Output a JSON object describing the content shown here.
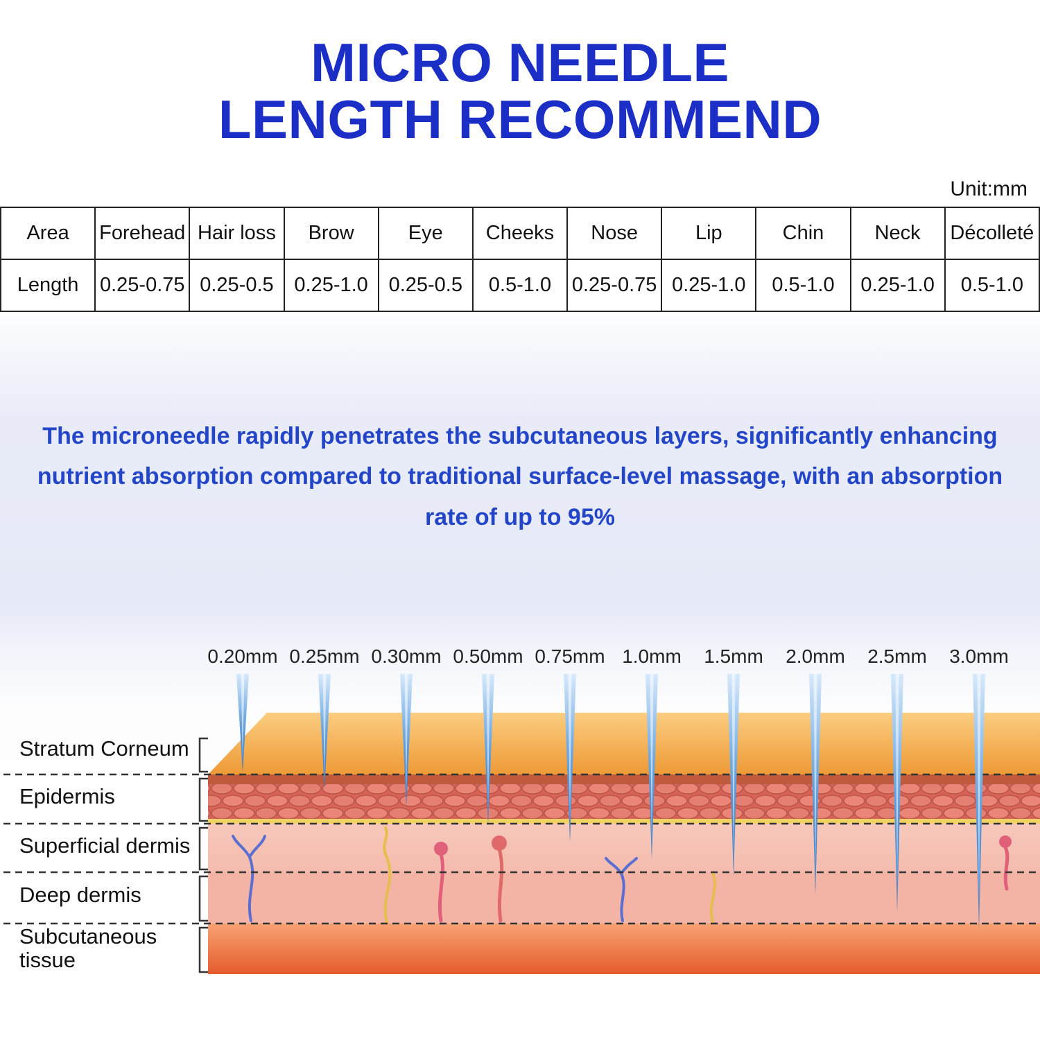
{
  "title": {
    "line1": "MICRO NEEDLE",
    "line2": "LENGTH RECOMMEND"
  },
  "unit_label": "Unit:mm",
  "table": {
    "headers": [
      "Area",
      "Forehead",
      "Hair loss",
      "Brow",
      "Eye",
      "Cheeks",
      "Nose",
      "Lip",
      "Chin",
      "Neck",
      "Décolleté"
    ],
    "row_label": "Length",
    "values": [
      "0.25-0.75",
      "0.25-0.5",
      "0.25-1.0",
      "0.25-0.5",
      "0.5-1.0",
      "0.25-0.75",
      "0.25-1.0",
      "0.5-1.0",
      "0.25-1.0",
      "0.5-1.0"
    ]
  },
  "description": "The microneedle rapidly penetrates the subcutaneous layers, significantly enhancing nutrient absorption compared to traditional surface-level massage, with an absorption rate of up to 95%",
  "diagram": {
    "needle_labels": [
      "0.20mm",
      "0.25mm",
      "0.30mm",
      "0.50mm",
      "0.75mm",
      "1.0mm",
      "1.5mm",
      "2.0mm",
      "2.5mm",
      "3.0mm"
    ],
    "layers": [
      {
        "name": "Stratum Corneum",
        "lines": [
          "Stratum Corneum"
        ]
      },
      {
        "name": "Epidermis",
        "lines": [
          "Epidermis"
        ]
      },
      {
        "name": "Superficial dermis",
        "lines": [
          "Superficial dermis"
        ]
      },
      {
        "name": "Deep dermis",
        "lines": [
          "Deep dermis"
        ]
      },
      {
        "name": "Subcutaneous tissue",
        "lines": [
          "Subcutaneous",
          "tissue"
        ]
      }
    ]
  },
  "colors": {
    "title_blue": "#1b2ec5",
    "text_blue": "#2345c8",
    "needle_blue": "#2f6fbe",
    "skin_surface_orange": "#ef9c38",
    "epidermis_red": "#d96455",
    "dermis_pink": "#f5c2b6",
    "subcutaneous_orange": "#e55c2c"
  }
}
